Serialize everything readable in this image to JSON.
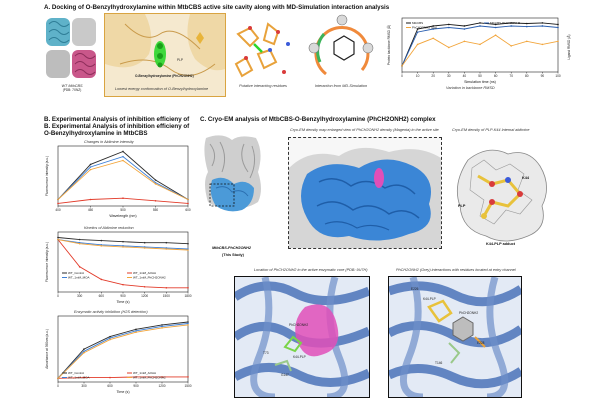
{
  "panel_a": {
    "title": "A. Docking of O-Benzylhydroxylamine within MtbCBS active site cavity along with MD-Simulation interaction analysis",
    "structure_caption": "WT MtbCBS",
    "structure_pdb": "(PDB: 7XNZ)",
    "docking_caption": "Lowest energy conformation of O-Benzylhydroxylamine",
    "ligand_label": "O-Benzylhydroxylamine (PhCH2ONH2)",
    "plp_label": "PLP",
    "residues_caption": "Putative interacting residues",
    "md_caption": "Interaction from MD-Simulation",
    "rmsd_caption": "Variation in backbone RMSD",
    "rmsd_xlabel": "Simulation time (ns)",
    "rmsd_ylabel_left": "Protein backbone RMSD (Å)",
    "rmsd_ylabel_right": "Ligand RMSD (Å)",
    "rmsd_legend": [
      "MtbCBS",
      "MtbCBS-PhCH2ONH2",
      "PhCH2ONH2 (Lig)"
    ]
  },
  "panel_b": {
    "title": "B. Experimental Analysis of inhibition efficieny of O-Benzylhydroxylamine in MtbCBS",
    "plot1_caption": "Changes in Aldimine intensity",
    "plot1_xlabel": "Wavelength (nm)",
    "plot1_ylabel": "Fluorescence intensity (a.u.)",
    "plot2_caption": "Kinetics of Aldimine reduction",
    "plot2_xlabel": "Time (s)",
    "plot2_ylabel": "Fluorescence intensity (a.u.)",
    "plot3_caption": "Enzymatic activity inhibition (H2S detection)",
    "plot3_xlabel": "Time (s)",
    "plot3_ylabel": "Absorbance at 390nm (a.u.)",
    "legend": [
      "WT_Control",
      "WT_1mM_AOAA",
      "WT_1mM_MOA",
      "WT_1mM_PhCH2ONH2"
    ]
  },
  "panel_c": {
    "title": "C. Cryo-EM analysis of MtbCBS-O-Benzylhydroxylamine (PhCH2ONH2) complex",
    "zoom_caption": "Cryo-EM density map enlarged view of PhCH2ONH2 density (Magenta) in the active site",
    "plp_density_caption": "Cryo-EM density of PLP-K44 Internal aldimine",
    "complex_label": "MtbCBS-PhCH2ONH2",
    "complex_sublabel": "(This Study)",
    "k44_label": "K44",
    "plp_label": "PLP",
    "adduct_label": "K44-PLP adduct",
    "location_caption": "Location of PhCH2ONH2 in the active enzymatic core (PDB: 9U7H)",
    "grey_caption": "PhCH2ONH2 (Grey) interactions with residues located at entry channel",
    "active_labels": [
      "PhCH2ONH2",
      "T73",
      "K44-PLP",
      "G147"
    ],
    "entry_labels": [
      "E226",
      "K44-PLP",
      "PhCH2ONH2",
      "E228",
      "T146"
    ]
  },
  "colors": {
    "control": "#2b2b2b",
    "aoaa": "#e23b2a",
    "moa": "#3d7fd6",
    "phch": "#f2a53b",
    "density": "#3b86d6",
    "protein": "#4b73b8",
    "magenta": "#e04fb8",
    "ligand": "#7ad44a"
  },
  "chart_data": [
    {
      "type": "line",
      "title": "Changes in Aldimine intensity",
      "xlabel": "Wavelength (nm)",
      "ylabel": "Fluorescence intensity (a.u.)",
      "xlim": [
        400,
        600
      ],
      "x": [
        400,
        450,
        500,
        550,
        600
      ],
      "series": [
        {
          "name": "WT_Control",
          "values": [
            0.05,
            0.32,
            0.42,
            0.2,
            0.05
          ]
        },
        {
          "name": "WT_1mM_AOAA",
          "values": [
            0.02,
            0.05,
            0.06,
            0.04,
            0.02
          ]
        },
        {
          "name": "WT_1mM_MOA",
          "values": [
            0.05,
            0.3,
            0.38,
            0.18,
            0.05
          ]
        },
        {
          "name": "WT_1mM_PhCH2ONH2",
          "values": [
            0.05,
            0.28,
            0.35,
            0.17,
            0.05
          ]
        }
      ]
    },
    {
      "type": "line",
      "title": "Kinetics of Aldimine reduction",
      "xlabel": "Time (s)",
      "ylabel": "Fluorescence intensity (a.u.)",
      "xlim": [
        0,
        1800
      ],
      "x": [
        0,
        300,
        600,
        900,
        1200,
        1500,
        1800
      ],
      "series": [
        {
          "name": "WT_Control",
          "values": [
            0.52,
            0.5,
            0.49,
            0.48,
            0.47,
            0.47,
            0.46
          ]
        },
        {
          "name": "WT_1mM_AOAA",
          "values": [
            0.5,
            0.24,
            0.12,
            0.07,
            0.05,
            0.04,
            0.04
          ]
        },
        {
          "name": "WT_1mM_MOA",
          "values": [
            0.5,
            0.47,
            0.45,
            0.44,
            0.43,
            0.42,
            0.41
          ]
        },
        {
          "name": "WT_1mM_PhCH2ONH2",
          "values": [
            0.5,
            0.46,
            0.44,
            0.43,
            0.42,
            0.41,
            0.4
          ]
        }
      ]
    },
    {
      "type": "line",
      "title": "Enzymatic activity inhibition (H2S detection)",
      "xlabel": "Time (s)",
      "ylabel": "Absorbance at 390nm (a.u.)",
      "xlim": [
        0,
        1500
      ],
      "x": [
        0,
        300,
        600,
        900,
        1200,
        1500
      ],
      "series": [
        {
          "name": "WT_Control",
          "values": [
            0.05,
            0.45,
            0.62,
            0.72,
            0.78,
            0.82
          ]
        },
        {
          "name": "WT_1mM_AOAA",
          "values": [
            0.05,
            0.06,
            0.06,
            0.07,
            0.07,
            0.07
          ]
        },
        {
          "name": "WT_1mM_MOA",
          "values": [
            0.05,
            0.42,
            0.6,
            0.7,
            0.76,
            0.8
          ]
        },
        {
          "name": "WT_1mM_PhCH2ONH2",
          "values": [
            0.05,
            0.4,
            0.58,
            0.68,
            0.74,
            0.78
          ]
        }
      ]
    },
    {
      "type": "line",
      "title": "Variation in backbone RMSD",
      "xlabel": "Simulation time (ns)",
      "ylabel": "Protein backbone RMSD (Å)",
      "xlim": [
        0,
        100
      ],
      "x": [
        0,
        10,
        20,
        30,
        40,
        50,
        60,
        70,
        80,
        90,
        100
      ],
      "series": [
        {
          "name": "MtbCBS",
          "values": [
            0.2,
            1.4,
            1.5,
            1.55,
            1.5,
            1.6,
            1.55,
            1.6,
            1.58,
            1.6,
            1.55
          ]
        },
        {
          "name": "MtbCBS-PhCH2ONH2",
          "values": [
            0.2,
            1.3,
            1.4,
            1.45,
            1.4,
            1.5,
            1.45,
            1.5,
            1.48,
            1.5,
            1.45
          ]
        },
        {
          "name": "PhCH2ONH2 (Lig)",
          "values": [
            0.2,
            0.9,
            1.1,
            0.8,
            1.0,
            0.9,
            1.2,
            0.85,
            1.0,
            0.9,
            1.0
          ]
        }
      ]
    }
  ]
}
